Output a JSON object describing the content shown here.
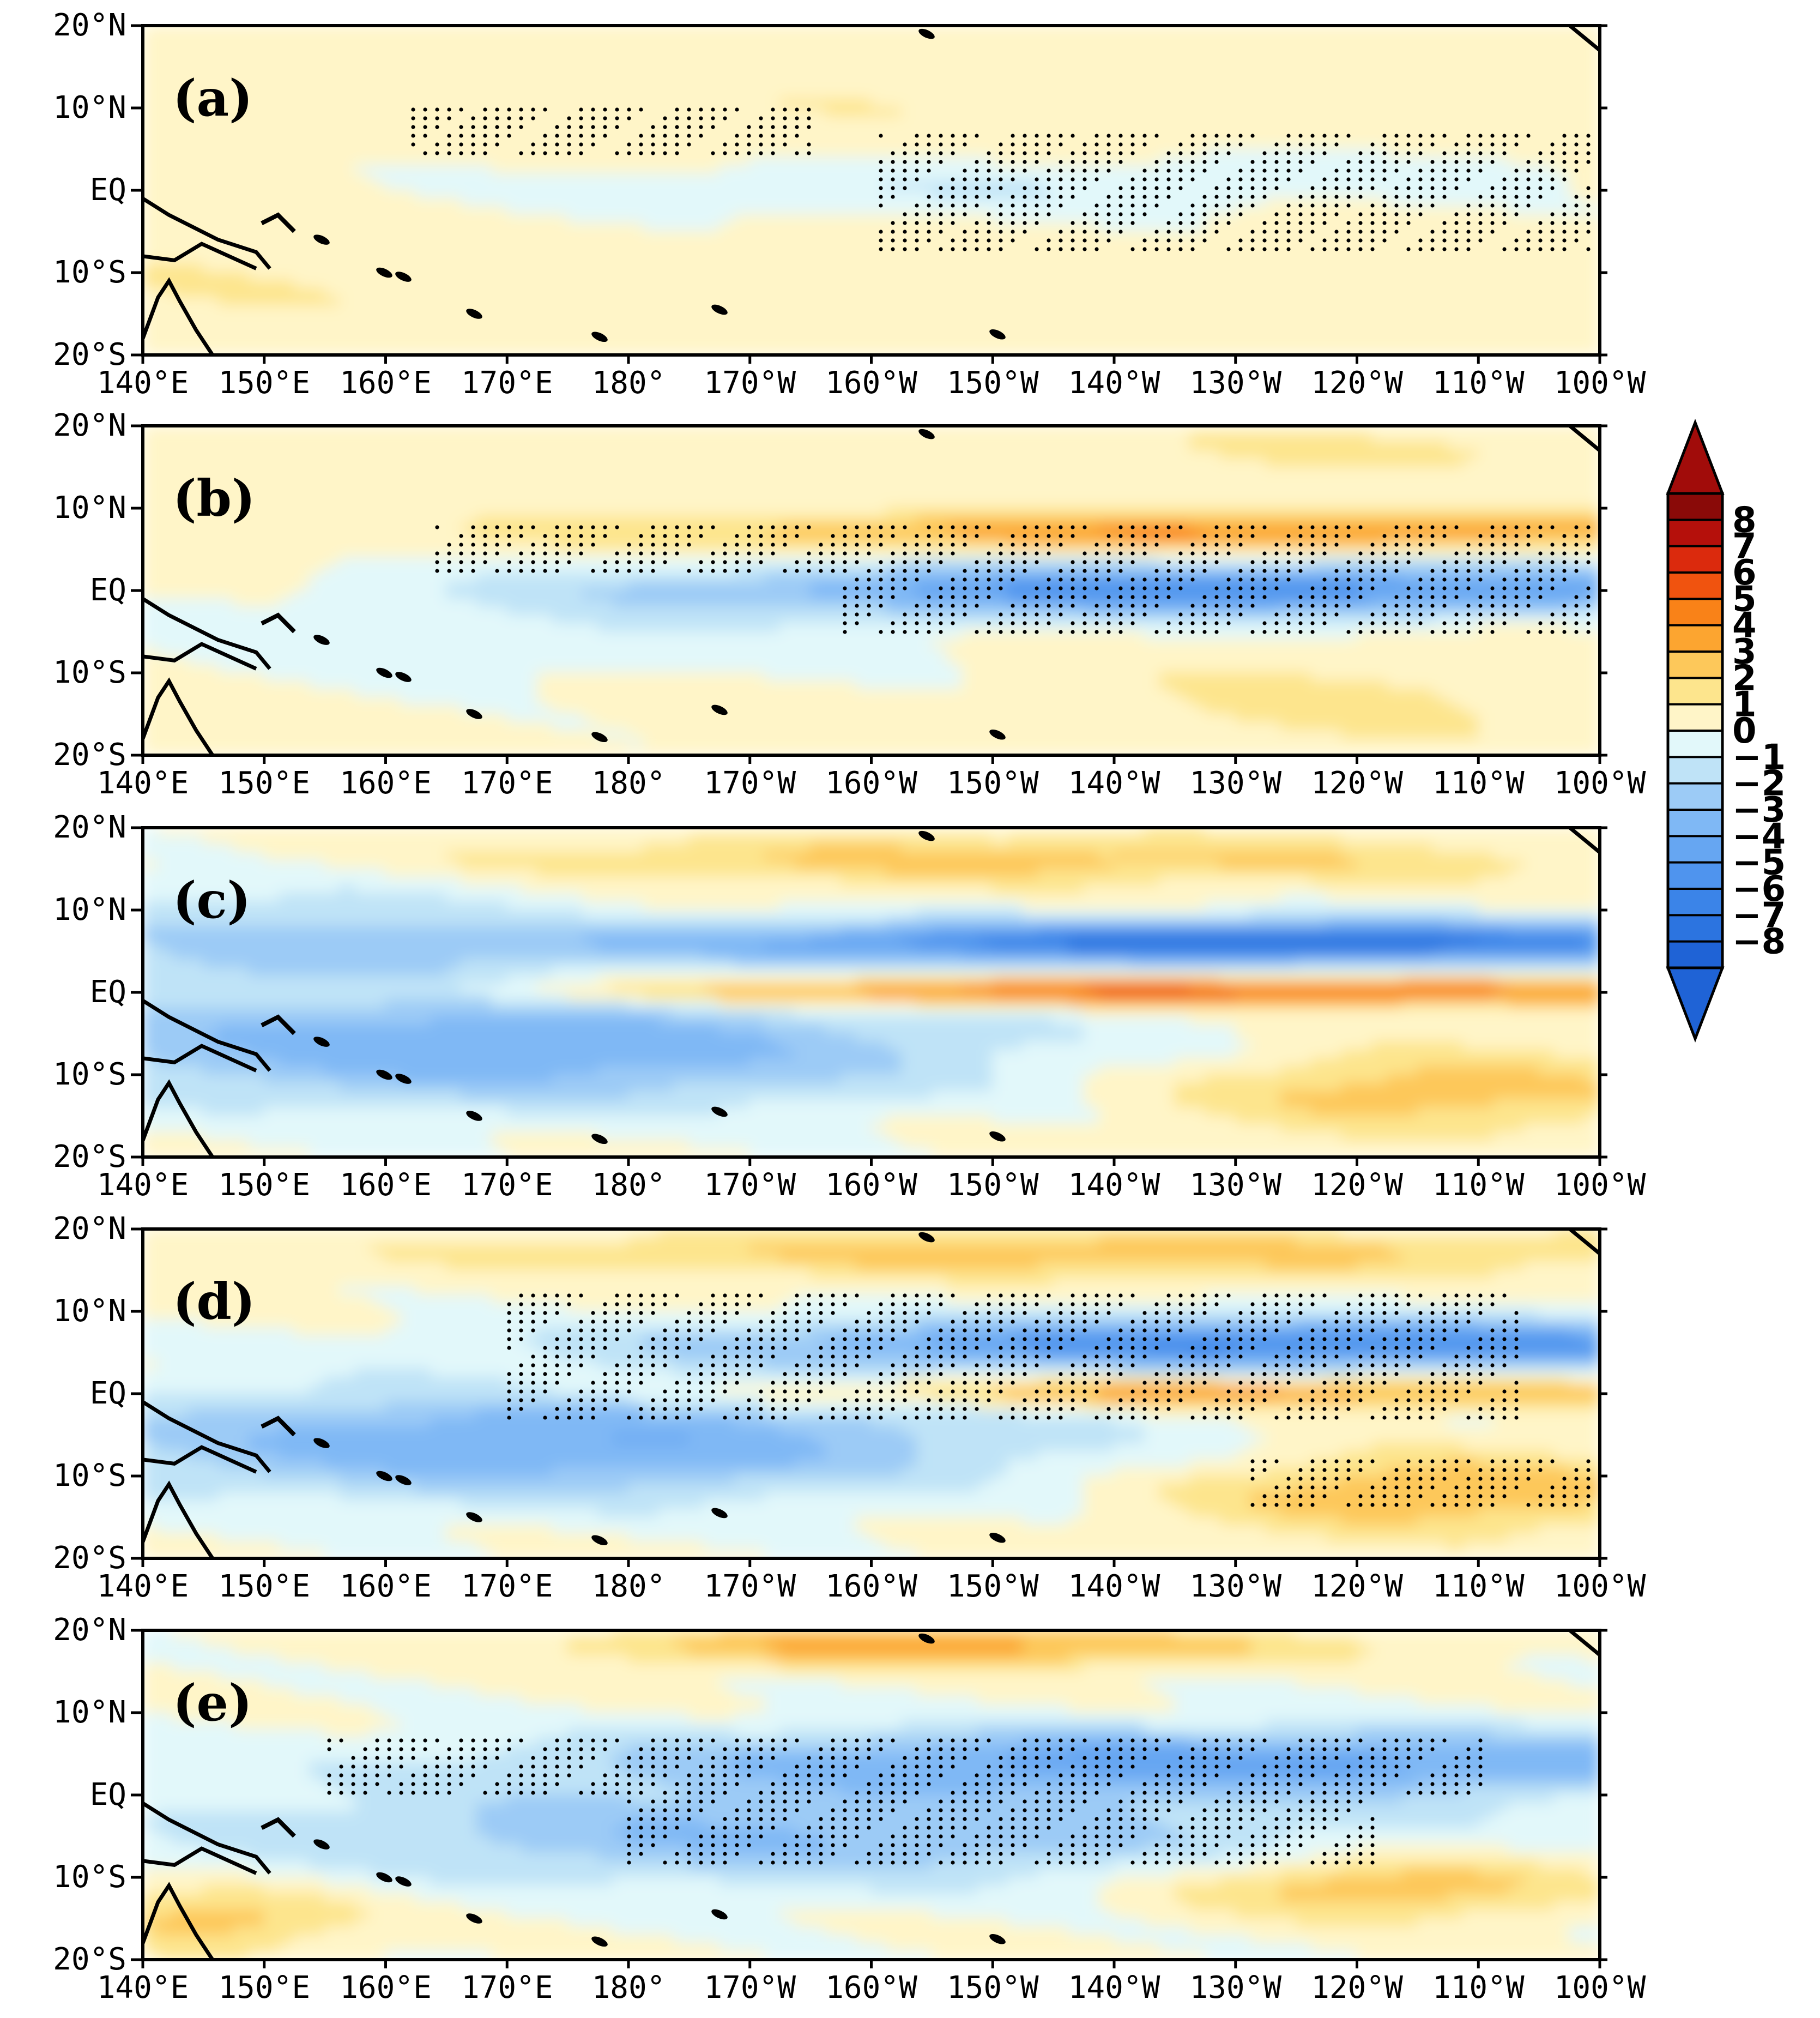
{
  "panels": [
    {
      "label": "(a)",
      "pattern": "a",
      "stippled": true
    },
    {
      "label": "(b)",
      "pattern": "b",
      "stippled": true
    },
    {
      "label": "(c)",
      "pattern": "c",
      "stippled": false
    },
    {
      "label": "(d)",
      "pattern": "d",
      "stippled": true
    },
    {
      "label": "(e)",
      "pattern": "e",
      "stippled": true
    }
  ],
  "lon_ticks": [
    "140°E",
    "150°E",
    "160°E",
    "170°E",
    "180°",
    "170°W",
    "160°W",
    "150°W",
    "140°W",
    "130°W",
    "120°W",
    "110°W",
    "100°W"
  ],
  "lat_ticks": [
    "20°N",
    "10°N",
    "EQ",
    "10°S",
    "20°S"
  ],
  "colorbar": {
    "levels": [
      -8,
      -7,
      -6,
      -5,
      -4,
      -3,
      -2,
      -1,
      0,
      1,
      2,
      3,
      4,
      5,
      6,
      7,
      8
    ],
    "labels": [
      "8",
      "7",
      "6",
      "5",
      "4",
      "3",
      "2",
      "1",
      "0",
      "−1",
      "−2",
      "−3",
      "−4",
      "−5",
      "−6",
      "−7",
      "−8"
    ],
    "colors": [
      "#1f63d6",
      "#2c74e0",
      "#3b84e8",
      "#4f94ee",
      "#66a6f2",
      "#7fb8f5",
      "#9ccbf6",
      "#bfe3f7",
      "#e2f8fa",
      "#fff5c8",
      "#fde58d",
      "#fdc85a",
      "#fca530",
      "#f98218",
      "#f0530f",
      "#db2a0d",
      "#b5100b",
      "#8a0a08"
    ],
    "under_color": "#1f63d6",
    "over_color": "#a10c0a"
  },
  "chart_data": {
    "type": "heatmap",
    "title": "",
    "xlabel": "",
    "ylabel": "",
    "x_range": [
      "140°E",
      "100°W"
    ],
    "y_range": [
      "20°S",
      "20°N"
    ],
    "colorbar_range": [
      -8,
      8
    ],
    "contour_interval": 1,
    "panels": [
      "(a)",
      "(b)",
      "(c)",
      "(d)",
      "(e)"
    ]
  }
}
